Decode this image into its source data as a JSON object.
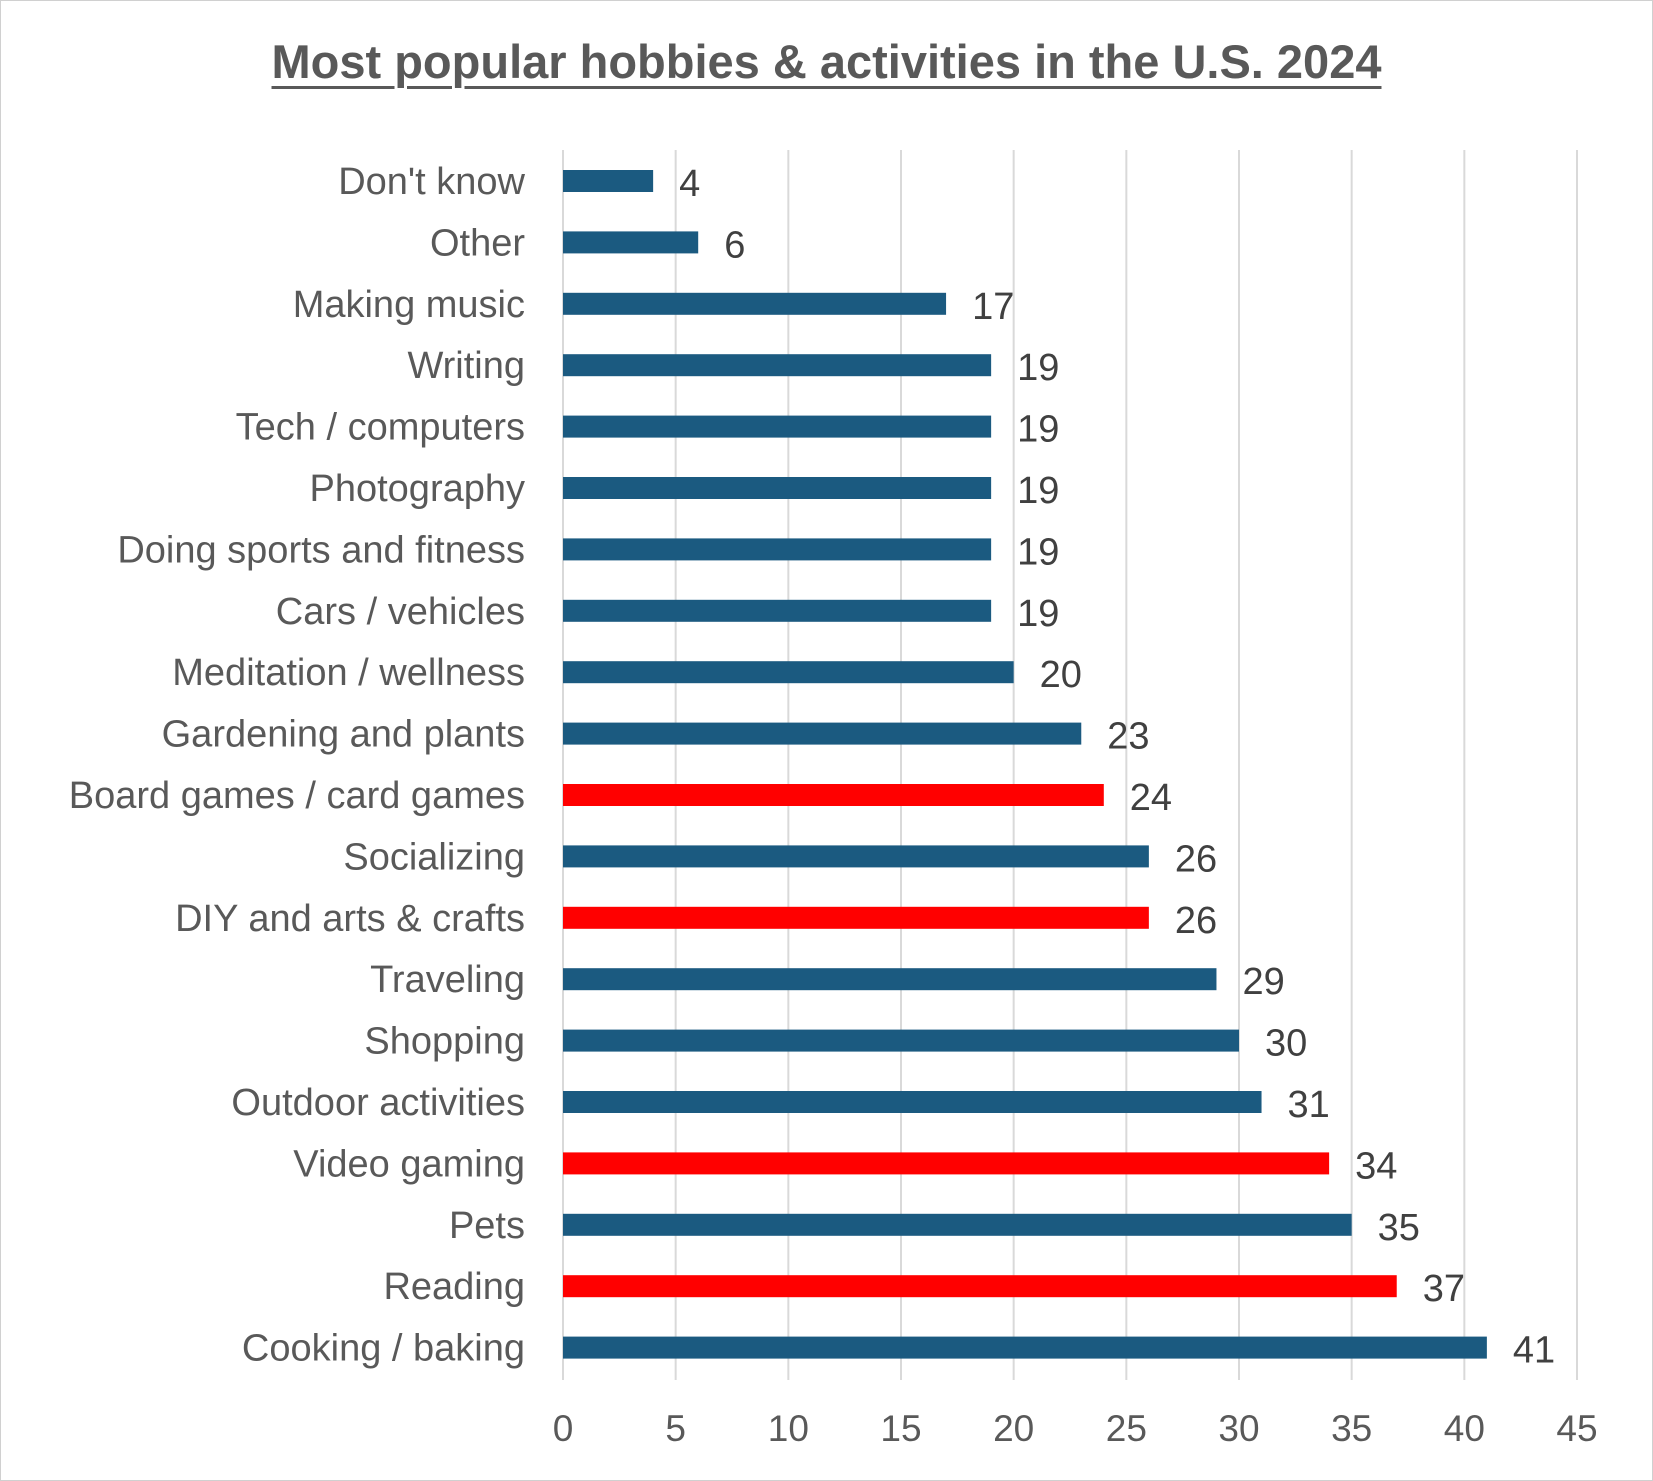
{
  "chart_data": {
    "type": "bar",
    "orientation": "horizontal",
    "title": "Most popular hobbies & activities in the U.S. 2024",
    "xlabel": "",
    "ylabel": "",
    "xlim": [
      0,
      45
    ],
    "x_ticks": [
      0,
      5,
      10,
      15,
      20,
      25,
      30,
      35,
      40,
      45
    ],
    "grid": true,
    "legend": "none",
    "colors": {
      "default": "#1b5a80",
      "highlight": "#ff0000"
    },
    "categories": [
      "Don't know",
      "Other",
      "Making music",
      "Writing",
      "Tech / computers",
      "Photography",
      "Doing sports and fitness",
      "Cars / vehicles",
      "Meditation / wellness",
      "Gardening and plants",
      "Board games / card games",
      "Socializing",
      "DIY and arts & crafts",
      "Traveling",
      "Shopping",
      "Outdoor activities",
      "Video gaming",
      "Pets",
      "Reading",
      "Cooking / baking"
    ],
    "values": [
      4,
      6,
      17,
      19,
      19,
      19,
      19,
      19,
      20,
      23,
      24,
      26,
      26,
      29,
      30,
      31,
      34,
      35,
      37,
      41
    ],
    "highlighted": [
      false,
      false,
      false,
      false,
      false,
      false,
      false,
      false,
      false,
      false,
      true,
      false,
      true,
      false,
      false,
      false,
      true,
      false,
      true,
      false
    ]
  }
}
